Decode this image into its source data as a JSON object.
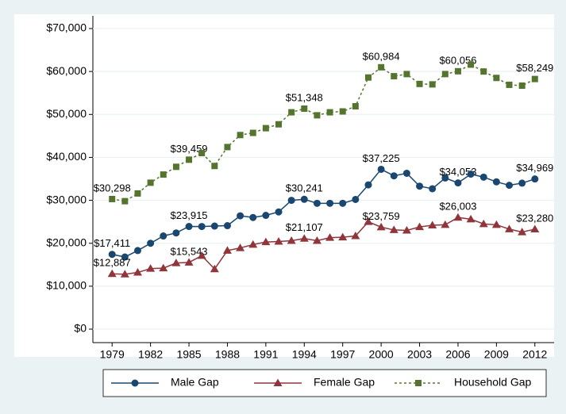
{
  "chart_data": {
    "type": "line",
    "x": [
      1979,
      1980,
      1981,
      1982,
      1983,
      1984,
      1985,
      1986,
      1987,
      1988,
      1989,
      1990,
      1991,
      1992,
      1993,
      1994,
      1995,
      1996,
      1997,
      1998,
      1999,
      2000,
      2001,
      2002,
      2003,
      2004,
      2005,
      2006,
      2007,
      2008,
      2009,
      2010,
      2011,
      2012
    ],
    "series": [
      {
        "name": "Male Gap",
        "color": "#1a476f",
        "marker": "circle",
        "dash": false,
        "values": [
          17411,
          16800,
          18300,
          20000,
          21700,
          22400,
          23915,
          23900,
          24000,
          24100,
          26400,
          26000,
          26500,
          27300,
          30000,
          30241,
          29300,
          29300,
          29300,
          30200,
          33600,
          37225,
          35700,
          36300,
          33300,
          32700,
          35200,
          34053,
          36100,
          35400,
          34300,
          33500,
          34000,
          34969
        ],
        "value_labels": [
          "$17,411",
          null,
          null,
          null,
          null,
          null,
          "$23,915",
          null,
          null,
          null,
          null,
          null,
          null,
          null,
          null,
          "$30,241",
          null,
          null,
          null,
          null,
          null,
          "$37,225",
          null,
          null,
          null,
          null,
          null,
          "$34,053",
          null,
          null,
          null,
          null,
          null,
          "$34,969"
        ]
      },
      {
        "name": "Female Gap",
        "color": "#90353b",
        "marker": "triangle",
        "dash": false,
        "values": [
          12887,
          12800,
          13200,
          14100,
          14200,
          15400,
          15543,
          17100,
          14000,
          18300,
          18900,
          19700,
          20300,
          20400,
          20600,
          21107,
          20600,
          21300,
          21400,
          21700,
          25000,
          23759,
          23100,
          23000,
          23800,
          24200,
          24300,
          26003,
          25600,
          24500,
          24300,
          23300,
          22600,
          23280
        ],
        "value_labels": [
          "$12,887",
          null,
          null,
          null,
          null,
          null,
          "$15,543",
          null,
          null,
          null,
          null,
          null,
          null,
          null,
          null,
          "$21,107",
          null,
          null,
          null,
          null,
          null,
          "$23,759",
          null,
          null,
          null,
          null,
          null,
          "$26,003",
          null,
          null,
          null,
          null,
          null,
          "$23,280"
        ]
      },
      {
        "name": "Household Gap",
        "color": "#55752f",
        "marker": "square",
        "dash": true,
        "values": [
          30298,
          29800,
          31600,
          34100,
          36000,
          37800,
          39459,
          41000,
          38000,
          42400,
          45200,
          45700,
          46800,
          47700,
          50500,
          51348,
          49800,
          50500,
          50700,
          51900,
          58600,
          60984,
          58900,
          59400,
          57100,
          57000,
          59400,
          60056,
          61600,
          60000,
          58500,
          56900,
          56700,
          58249
        ],
        "value_labels": [
          "$30,298",
          null,
          null,
          null,
          null,
          null,
          "$39,459",
          null,
          null,
          null,
          null,
          null,
          null,
          null,
          null,
          "$51,348",
          null,
          null,
          null,
          null,
          null,
          "$60,984",
          null,
          null,
          null,
          null,
          null,
          "$60,056",
          null,
          null,
          null,
          null,
          null,
          "$58,249"
        ]
      }
    ],
    "xlim": [
      1977.5,
      2013.5
    ],
    "xticks": [
      1979,
      1982,
      1985,
      1988,
      1991,
      1994,
      1997,
      2000,
      2003,
      2006,
      2009,
      2012
    ],
    "ylim": [
      0,
      70000
    ],
    "yticks": [
      {
        "value": 0,
        "label": "$0"
      },
      {
        "value": 10000,
        "label": "$10,000"
      },
      {
        "value": 20000,
        "label": "$20,000"
      },
      {
        "value": 30000,
        "label": "$30,000"
      },
      {
        "value": 40000,
        "label": "$40,000"
      },
      {
        "value": 50000,
        "label": "$50,000"
      },
      {
        "value": 60000,
        "label": "$60,000"
      },
      {
        "value": 70000,
        "label": "$70,000"
      }
    ],
    "grid": true,
    "legend": "bottom"
  }
}
